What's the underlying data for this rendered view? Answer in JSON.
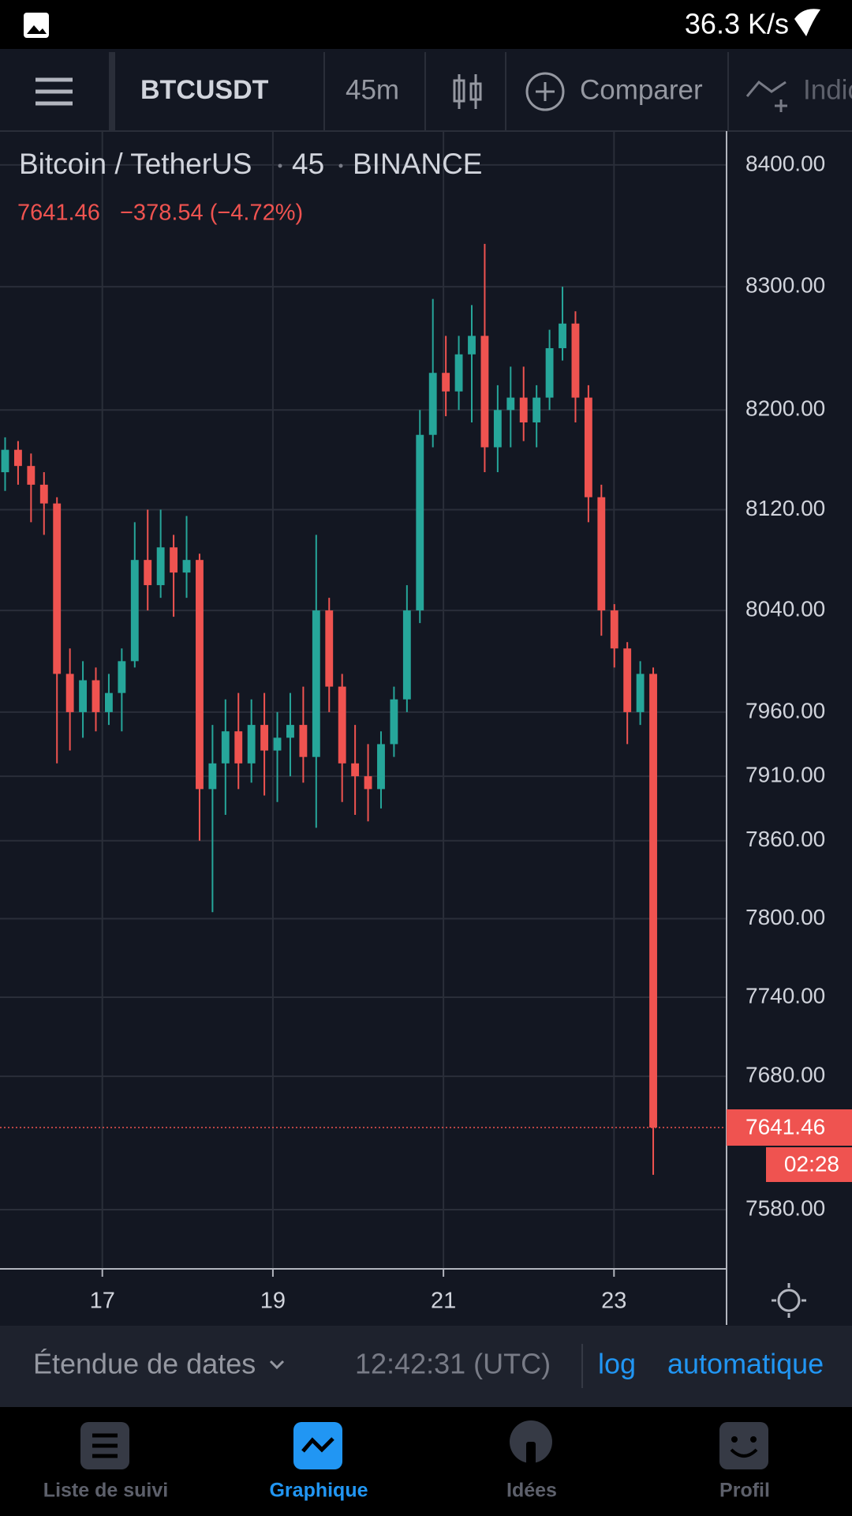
{
  "status_bar": {
    "network_speed": "36.3 K/s"
  },
  "toolbar": {
    "symbol": "BTCUSDT",
    "interval": "45m",
    "compare": "Comparer",
    "indicators": "Indicateurs"
  },
  "legend": {
    "name": "Bitcoin / TetherUS",
    "interval": "45",
    "exchange": "BINANCE",
    "price": "7641.46",
    "change": "−378.54 (−4.72%)"
  },
  "chart_data": {
    "type": "candlestick",
    "log_scale": true,
    "grid": true,
    "up_color": "#26a69a",
    "down_color": "#ef5350",
    "x": [
      15.86,
      16.012,
      16.164,
      16.316,
      16.468,
      16.62,
      16.772,
      16.924,
      17.076,
      17.228,
      17.38,
      17.532,
      17.684,
      17.836,
      17.988,
      18.14,
      18.292,
      18.444,
      18.596,
      18.748,
      18.9,
      19.052,
      19.204,
      19.356,
      19.508,
      19.66,
      19.812,
      19.964,
      20.116,
      20.268,
      20.42,
      20.572,
      20.724,
      20.876,
      21.028,
      21.18,
      21.332,
      21.484,
      21.636,
      21.788,
      21.94,
      22.092,
      22.244,
      22.396,
      22.548,
      22.7,
      22.852,
      23.004,
      23.156,
      23.308,
      23.46
    ],
    "open": [
      8150,
      8168,
      8155,
      8140,
      8125,
      7990,
      7960,
      7985,
      7960,
      7975,
      8000,
      8080,
      8060,
      8090,
      8070,
      8080,
      7900,
      7920,
      7945,
      7920,
      7950,
      7930,
      7940,
      7950,
      7925,
      8040,
      7980,
      7920,
      7910,
      7900,
      7935,
      7970,
      8040,
      8180,
      8230,
      8215,
      8245,
      8260,
      8170,
      8200,
      8210,
      8190,
      8210,
      8250,
      8270,
      8210,
      8130,
      8040,
      8010,
      7960,
      7990
    ],
    "high": [
      8178,
      8175,
      8165,
      8150,
      8130,
      8010,
      8000,
      7995,
      7990,
      8010,
      8110,
      8120,
      8120,
      8100,
      8115,
      8085,
      7950,
      7970,
      7975,
      7970,
      7975,
      7960,
      7975,
      7980,
      8100,
      8050,
      7990,
      7950,
      7935,
      7945,
      7980,
      8060,
      8200,
      8290,
      8260,
      8260,
      8285,
      8335,
      8220,
      8235,
      8235,
      8220,
      8265,
      8300,
      8280,
      8220,
      8140,
      8045,
      8015,
      8000,
      7995
    ],
    "low": [
      8135,
      8140,
      8110,
      8100,
      7920,
      7930,
      7940,
      7945,
      7950,
      7945,
      7995,
      8040,
      8050,
      8035,
      8050,
      7860,
      7805,
      7880,
      7900,
      7905,
      7895,
      7890,
      7910,
      7905,
      7870,
      7960,
      7890,
      7880,
      7875,
      7885,
      7925,
      7960,
      8030,
      8170,
      8195,
      8200,
      8190,
      8150,
      8150,
      8170,
      8175,
      8170,
      8200,
      8240,
      8190,
      8110,
      8020,
      7995,
      7935,
      7950,
      7606
    ],
    "close": [
      8168,
      8155,
      8140,
      8125,
      7990,
      7960,
      7985,
      7960,
      7975,
      8000,
      8080,
      8060,
      8090,
      8070,
      8080,
      7900,
      7920,
      7945,
      7920,
      7950,
      7930,
      7940,
      7950,
      7925,
      8040,
      7980,
      7920,
      7910,
      7900,
      7935,
      7970,
      8040,
      8180,
      8230,
      8215,
      8245,
      8260,
      8170,
      8200,
      8210,
      8190,
      8210,
      8250,
      8270,
      8210,
      8130,
      8040,
      8010,
      7960,
      7990,
      7641.46
    ],
    "ylim": [
      7536,
      8428
    ],
    "yticks": [
      {
        "value": 8400,
        "label": "8400.00"
      },
      {
        "value": 8300,
        "label": "8300.00"
      },
      {
        "value": 8200,
        "label": "8200.00"
      },
      {
        "value": 8120,
        "label": "8120.00"
      },
      {
        "value": 8040,
        "label": "8040.00"
      },
      {
        "value": 7960,
        "label": "7960.00"
      },
      {
        "value": 7910,
        "label": "7910.00"
      },
      {
        "value": 7860,
        "label": "7860.00"
      },
      {
        "value": 7800,
        "label": "7800.00"
      },
      {
        "value": 7740,
        "label": "7740.00"
      },
      {
        "value": 7680,
        "label": "7680.00"
      },
      {
        "value": 7580,
        "label": "7580.00"
      }
    ],
    "xlim": [
      15.8,
      24.32
    ],
    "xticks": [
      17,
      19,
      21,
      23
    ],
    "countdown": "02:28"
  },
  "bottom_bar": {
    "date_range": "Étendue de dates",
    "time": "12:42:31 (UTC)",
    "log": "log",
    "auto": "automatique"
  },
  "nav": [
    "Liste de suivi",
    "Graphique",
    "Idées",
    "Profil"
  ]
}
